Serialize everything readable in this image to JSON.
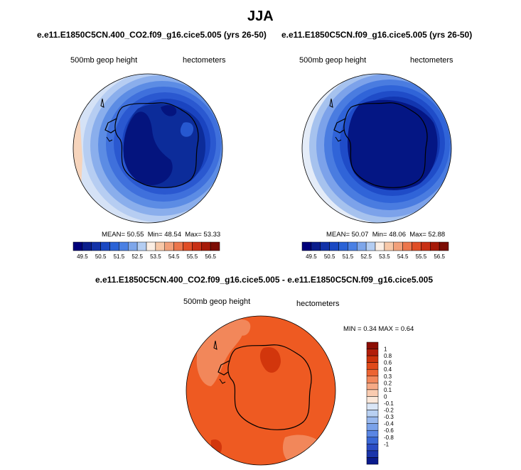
{
  "main_title": "JJA",
  "panels": [
    {
      "case": "e.e11.E1850C5CN.400_CO2.f09_g16.cice5.005 (yrs 26-50)",
      "variable": "500mb geop height",
      "units": "hectometers",
      "stats": {
        "mean_label": "MEAN=",
        "mean": "50.55",
        "min_label": "Min=",
        "min": "48.54",
        "max_label": "Max=",
        "max": "53.33"
      }
    },
    {
      "case": "e.e11.E1850C5CN.f09_g16.cice5.005 (yrs 26-50)",
      "variable": "500mb geop height",
      "units": "hectometers",
      "stats": {
        "mean_label": "MEAN=",
        "mean": "50.07",
        "min_label": "Min=",
        "min": "48.06",
        "max_label": "Max=",
        "max": "52.88"
      }
    }
  ],
  "colorbar_abs": {
    "colors": [
      "#00007a",
      "#0a1d8c",
      "#1232a8",
      "#1a48c2",
      "#2a62d6",
      "#4a80e4",
      "#7ea6ea",
      "#b4cdf2",
      "#fbeee4",
      "#f7c8a8",
      "#f2a07a",
      "#ec764c",
      "#e04e26",
      "#c83014",
      "#a61a08",
      "#7c0c04"
    ],
    "labels": [
      "49.5",
      "50.5",
      "51.5",
      "52.5",
      "53.5",
      "54.5",
      "55.5",
      "56.5"
    ]
  },
  "difference": {
    "title": "e.e11.E1850C5CN.400_CO2.f09_g16.cice5.005 - e.e11.E1850C5CN.f09_g16.cice5.005",
    "variable": "500mb geop height",
    "units": "hectometers",
    "stats": {
      "min_label": "MIN =",
      "min": "0.34",
      "max_label": "MAX =",
      "max": "0.64"
    },
    "colorbar": {
      "colors": [
        "#8c0e04",
        "#b21e0a",
        "#cc320c",
        "#e04a1a",
        "#ec6432",
        "#f2885c",
        "#f6aa86",
        "#f9cbb0",
        "#fbe8da",
        "#dae6f6",
        "#b8d0f2",
        "#98b8ee",
        "#7aa2ea",
        "#5a86e4",
        "#3a68d6",
        "#2a4cc4",
        "#1a34aa",
        "#0a1a8c"
      ],
      "labels": [
        "1",
        "0.8",
        "0.6",
        "0.4",
        "0.3",
        "0.2",
        "0.1",
        "0",
        "-0.1",
        "-0.2",
        "-0.3",
        "-0.4",
        "-0.6",
        "-0.8",
        "-1"
      ]
    }
  }
}
